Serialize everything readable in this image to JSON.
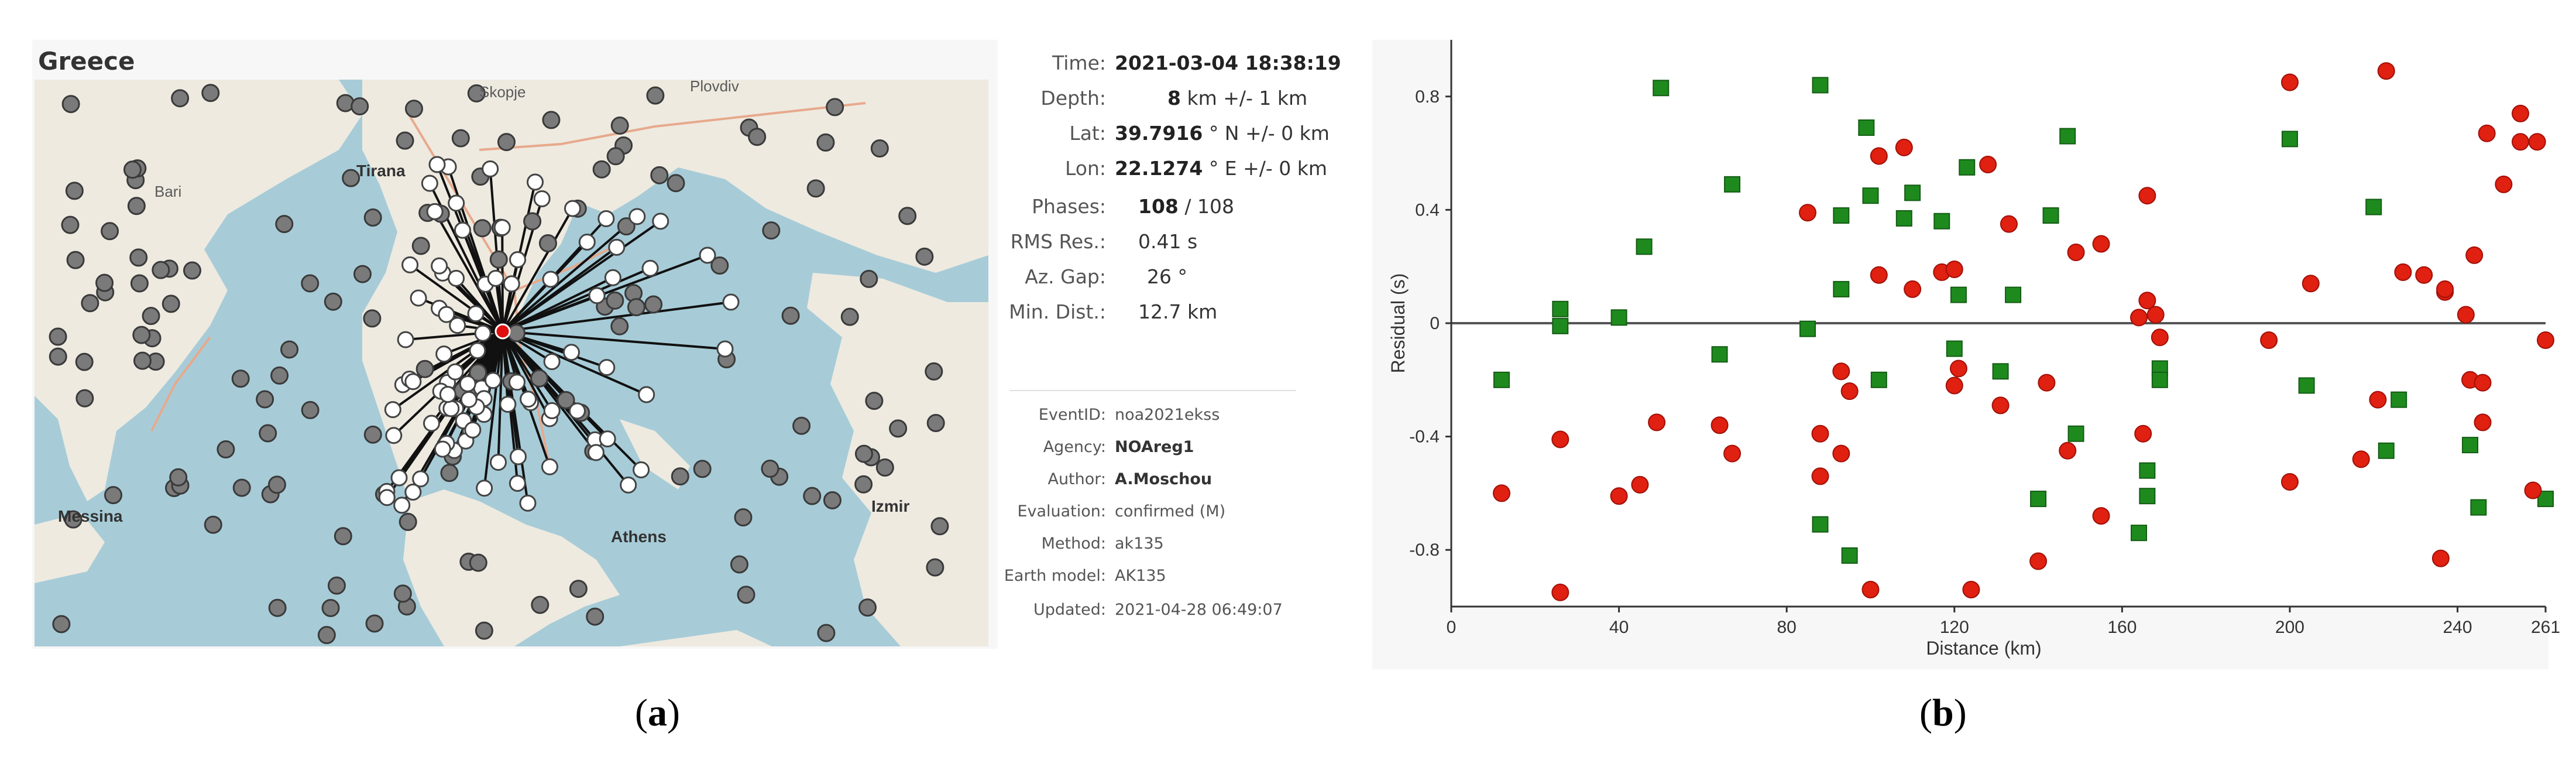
{
  "panel_a": {
    "region_title": "Greece",
    "map_labels": {
      "skopje": "Skopje",
      "plovdiv": "Plovdiv",
      "tirana": "Tirana",
      "bari": "Bari",
      "messina": "Messina",
      "izmir": "Izmir",
      "athens": "Athens"
    },
    "info": {
      "time_label": "Time:",
      "time_value": "2021-03-04 18:38:19",
      "depth_label": "Depth:",
      "depth_value": "8",
      "depth_unit": "km +/- 1 km",
      "lat_label": "Lat:",
      "lat_value": "39.7916",
      "lat_unit": "° N +/- 0 km",
      "lon_label": "Lon:",
      "lon_value": "22.1274",
      "lon_unit": "° E +/- 0 km",
      "phases_label": "Phases:",
      "phases_value": "108",
      "phases_total": "/   108",
      "rms_label": "RMS Res.:",
      "rms_value": "0.41 s",
      "azgap_label": "Az. Gap:",
      "azgap_value": "26 °",
      "mindist_label": "Min. Dist.:",
      "mindist_value": "12.7 km",
      "eventid_label": "EventID:",
      "eventid_value": "noa2021ekss",
      "agency_label": "Agency:",
      "agency_value": "NOAreg1",
      "author_label": "Author:",
      "author_value": "A.Moschou",
      "evaluation_label": "Evaluation:",
      "evaluation_value": "confirmed (M)",
      "method_label": "Method:",
      "method_value": "ak135",
      "earthmodel_label": "Earth model:",
      "earthmodel_value": "AK135",
      "updated_label": "Updated:",
      "updated_value": "2021-04-28 06:49:07"
    },
    "colors": {
      "sea": "#a7ccd8",
      "land": "#eeeae0",
      "station_used": "#ffffff",
      "station_unused": "#7a7a7a",
      "epicenter": "#e01010"
    }
  },
  "panel_b": {
    "chart_data": {
      "type": "scatter",
      "xlabel": "Distance (km)",
      "ylabel": "Residual (s)",
      "xlim": [
        0,
        261
      ],
      "ylim": [
        -1.0,
        1.0
      ],
      "xticks": [
        "0",
        "40",
        "80",
        "120",
        "160",
        "200",
        "240",
        "261"
      ],
      "xtick_values": [
        0,
        40,
        80,
        120,
        160,
        200,
        240,
        261
      ],
      "yticks": [
        "0.8",
        "0.4",
        "0",
        "-0.4",
        "-0.8"
      ],
      "ytick_values": [
        0.8,
        0.4,
        0,
        -0.4,
        -0.8
      ],
      "series": [
        {
          "marker": "square",
          "color": "#1e8a1e",
          "points": [
            [
              12,
              -0.2
            ],
            [
              26,
              0.05
            ],
            [
              26,
              -0.01
            ],
            [
              40,
              0.02
            ],
            [
              46,
              0.27
            ],
            [
              50,
              0.83
            ],
            [
              64,
              -0.11
            ],
            [
              67,
              0.49
            ],
            [
              85,
              -0.02
            ],
            [
              88,
              0.84
            ],
            [
              88,
              -0.71
            ],
            [
              93,
              0.38
            ],
            [
              93,
              0.12
            ],
            [
              95,
              -0.82
            ],
            [
              99,
              0.69
            ],
            [
              100,
              0.45
            ],
            [
              102,
              -0.2
            ],
            [
              108,
              0.37
            ],
            [
              110,
              0.46
            ],
            [
              117,
              0.36
            ],
            [
              120,
              -0.09
            ],
            [
              121,
              0.1
            ],
            [
              123,
              0.55
            ],
            [
              131,
              -0.17
            ],
            [
              134,
              0.1
            ],
            [
              140,
              -0.62
            ],
            [
              143,
              0.38
            ],
            [
              147,
              0.66
            ],
            [
              149,
              -0.39
            ],
            [
              164,
              -0.74
            ],
            [
              166,
              -0.52
            ],
            [
              166,
              -0.61
            ],
            [
              169,
              -0.16
            ],
            [
              169,
              -0.2
            ],
            [
              200,
              0.65
            ],
            [
              204,
              -0.22
            ],
            [
              220,
              0.41
            ],
            [
              223,
              -0.45
            ],
            [
              226,
              -0.27
            ],
            [
              243,
              -0.43
            ],
            [
              245,
              -0.65
            ],
            [
              261,
              -0.62
            ]
          ]
        },
        {
          "marker": "circle",
          "color": "#e02010",
          "points": [
            [
              12,
              -0.6
            ],
            [
              26,
              -0.41
            ],
            [
              26,
              -0.95
            ],
            [
              40,
              -0.61
            ],
            [
              45,
              -0.57
            ],
            [
              49,
              -0.35
            ],
            [
              64,
              -0.36
            ],
            [
              67,
              -0.46
            ],
            [
              85,
              0.39
            ],
            [
              88,
              -0.39
            ],
            [
              88,
              -0.54
            ],
            [
              93,
              -0.46
            ],
            [
              93,
              -0.17
            ],
            [
              95,
              -0.24
            ],
            [
              100,
              -0.94
            ],
            [
              102,
              0.17
            ],
            [
              102,
              0.59
            ],
            [
              108,
              0.62
            ],
            [
              110,
              0.12
            ],
            [
              117,
              0.18
            ],
            [
              120,
              0.19
            ],
            [
              120,
              -0.22
            ],
            [
              121,
              -0.16
            ],
            [
              124,
              -0.94
            ],
            [
              128,
              0.56
            ],
            [
              131,
              -0.29
            ],
            [
              133,
              0.35
            ],
            [
              140,
              -0.84
            ],
            [
              142,
              -0.21
            ],
            [
              147,
              -0.45
            ],
            [
              149,
              0.25
            ],
            [
              155,
              0.28
            ],
            [
              155,
              -0.68
            ],
            [
              164,
              0.02
            ],
            [
              165,
              -0.39
            ],
            [
              166,
              0.45
            ],
            [
              166,
              0.08
            ],
            [
              168,
              0.03
            ],
            [
              169,
              -0.05
            ],
            [
              195,
              -0.06
            ],
            [
              200,
              -0.56
            ],
            [
              200,
              0.85
            ],
            [
              205,
              0.14
            ],
            [
              217,
              -0.48
            ],
            [
              221,
              -0.27
            ],
            [
              223,
              0.89
            ],
            [
              227,
              0.18
            ],
            [
              232,
              0.17
            ],
            [
              236,
              -0.83
            ],
            [
              237,
              0.11
            ],
            [
              237,
              0.12
            ],
            [
              242,
              0.03
            ],
            [
              243,
              -0.2
            ],
            [
              244,
              0.24
            ],
            [
              246,
              -0.21
            ],
            [
              246,
              -0.35
            ],
            [
              247,
              0.67
            ],
            [
              251,
              0.49
            ],
            [
              255,
              0.74
            ],
            [
              255,
              0.64
            ],
            [
              259,
              0.64
            ],
            [
              258,
              -0.59
            ],
            [
              261,
              -0.06
            ]
          ]
        }
      ]
    },
    "colors": {
      "plot_bg": "#ffffff",
      "axis": "#333333",
      "zero_line": "#555555"
    }
  },
  "captions": {
    "a_open": "(",
    "a_letter": "a",
    "a_close": ")",
    "b_open": "(",
    "b_letter": "b",
    "b_close": ")"
  }
}
